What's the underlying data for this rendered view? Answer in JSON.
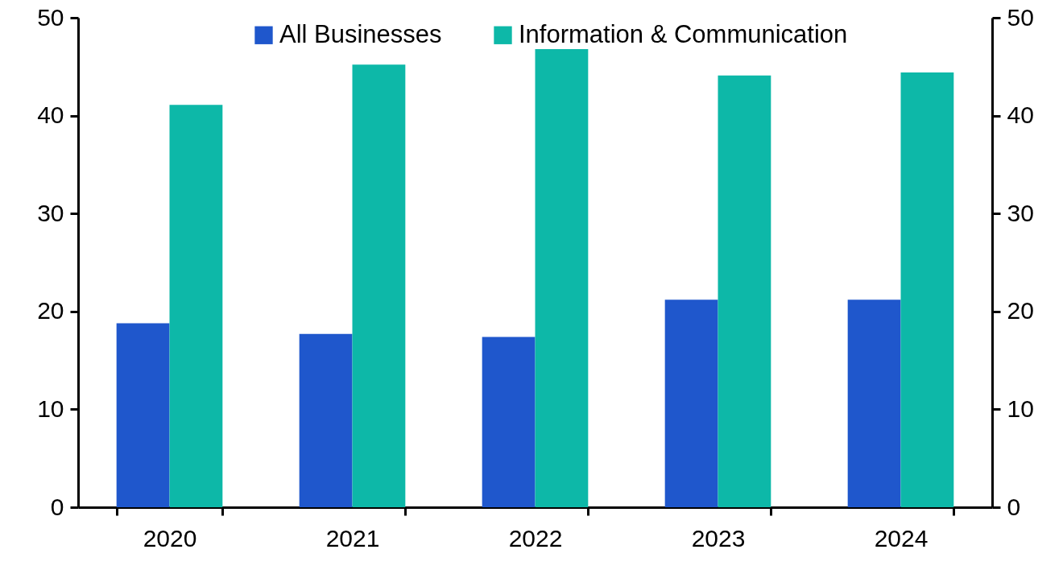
{
  "chart_data": {
    "type": "bar",
    "categories": [
      "2020",
      "2021",
      "2022",
      "2023",
      "2024"
    ],
    "series": [
      {
        "name": "All Businesses",
        "color": "#1f57cc",
        "values": [
          18.8,
          17.7,
          17.4,
          21.2,
          21.2
        ]
      },
      {
        "name": "Information & Communication",
        "color": "#0db8a8",
        "values": [
          41.1,
          45.2,
          46.8,
          44.1,
          44.4
        ]
      }
    ],
    "ylim": [
      0,
      50
    ],
    "yticks": [
      0,
      10,
      20,
      30,
      40,
      50
    ],
    "y2lim": [
      0,
      50
    ],
    "y2ticks": [
      0,
      10,
      20,
      30,
      40,
      50
    ],
    "legend": "top",
    "grid": false
  }
}
